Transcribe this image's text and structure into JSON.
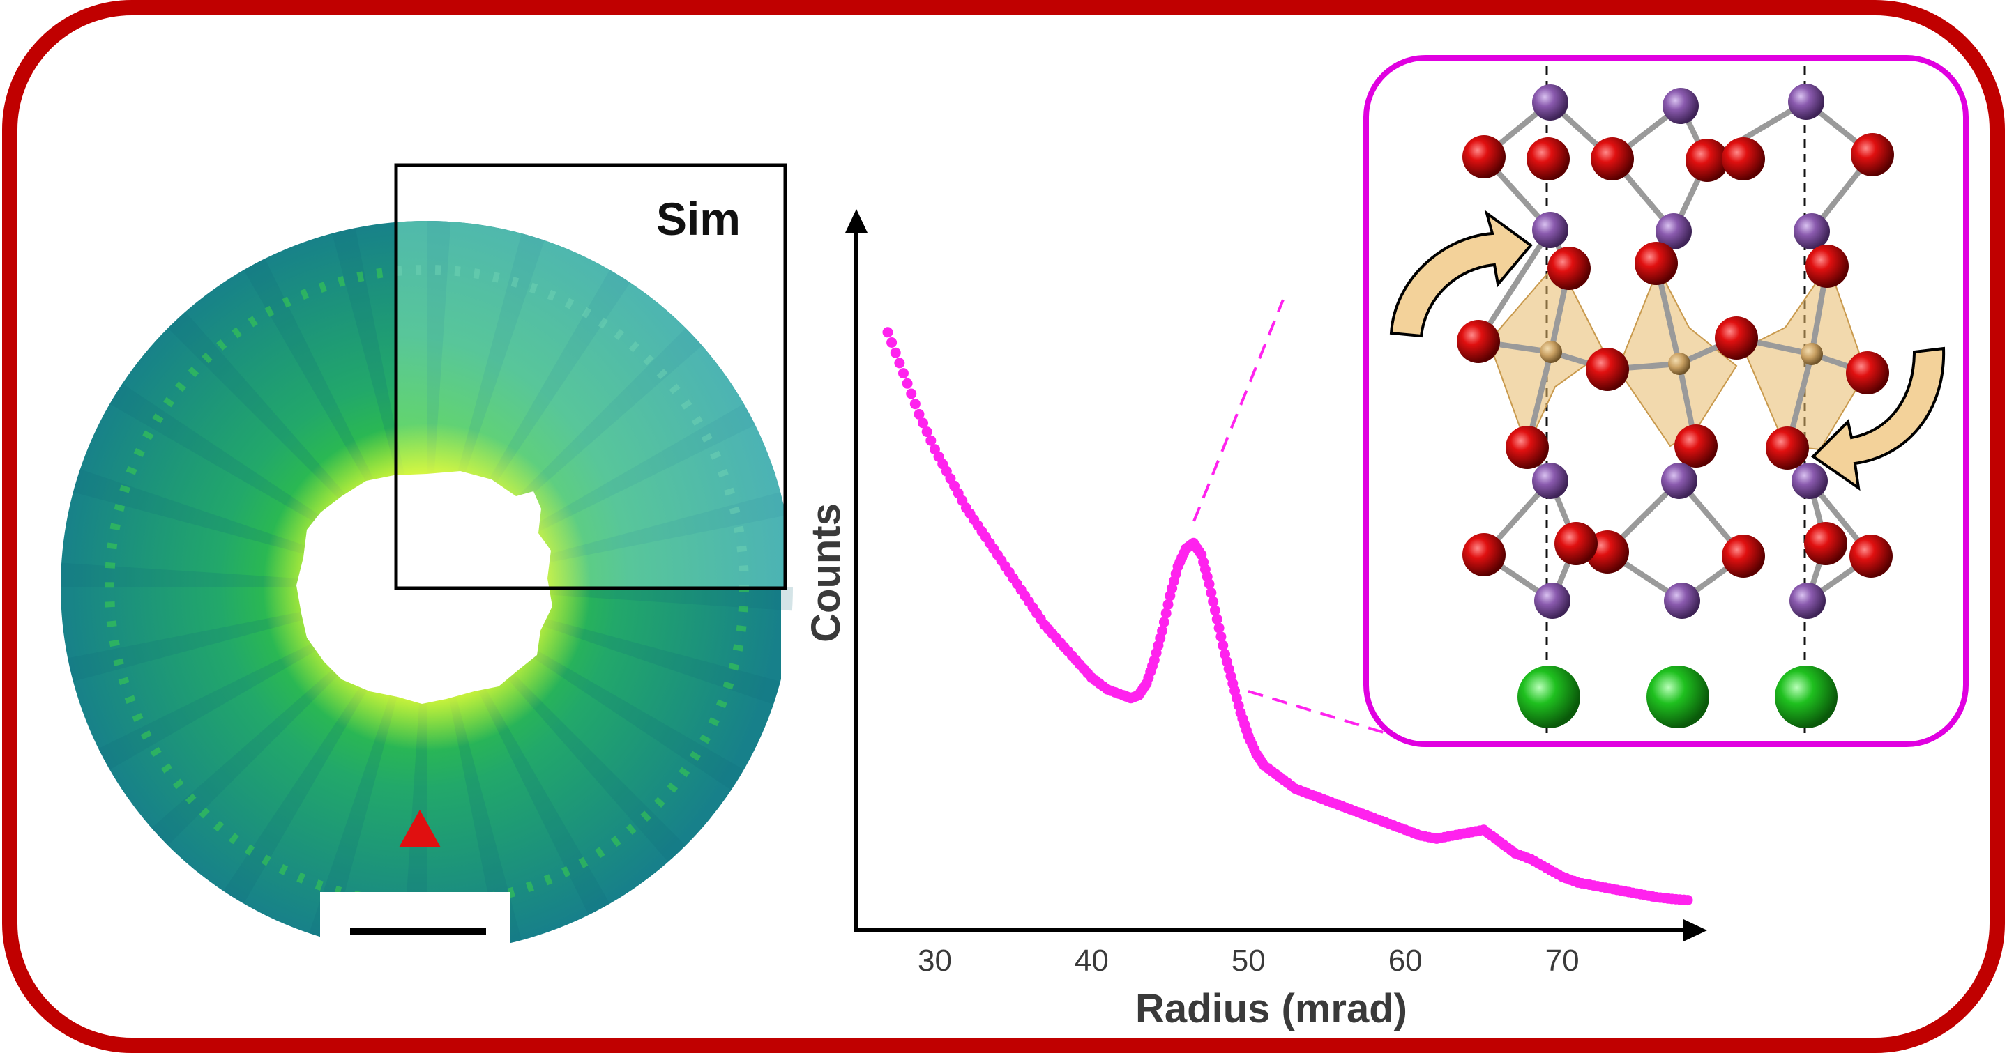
{
  "figure": {
    "border_color": "#C00000",
    "inset_label": "Sim",
    "marker_color": "#E01010",
    "pattern_colors": {
      "outer_teal": "#1E8A8C",
      "sim_teal": "#4FB5B0",
      "green": "#2EC83A",
      "bright": "#F6FF3A"
    }
  },
  "chart_data": {
    "type": "scatter",
    "xlabel": "Radius (mrad)",
    "ylabel": "Counts",
    "xticks": [
      30,
      40,
      50,
      60,
      70
    ],
    "xlim": [
      25,
      78
    ],
    "ylim": [
      0,
      1
    ],
    "color": "#FF22EE",
    "x": [
      27,
      28,
      29,
      30,
      31,
      32,
      33,
      34,
      35,
      36,
      37,
      38,
      39,
      40,
      41,
      42,
      42.5,
      43,
      43.5,
      44,
      44.5,
      45,
      45.5,
      46,
      46.5,
      47,
      47.5,
      48,
      48.5,
      49,
      49.5,
      50,
      50.5,
      51,
      52,
      53,
      54,
      55,
      56,
      57,
      58,
      59,
      60,
      61,
      62,
      63,
      64,
      65,
      66,
      67,
      68,
      69,
      70,
      71,
      72,
      73,
      74,
      75,
      76,
      77,
      78
    ],
    "y": [
      0.98,
      0.91,
      0.84,
      0.78,
      0.73,
      0.68,
      0.64,
      0.6,
      0.56,
      0.52,
      0.48,
      0.45,
      0.42,
      0.39,
      0.37,
      0.36,
      0.355,
      0.36,
      0.38,
      0.42,
      0.47,
      0.53,
      0.58,
      0.61,
      0.62,
      0.6,
      0.55,
      0.49,
      0.43,
      0.38,
      0.33,
      0.29,
      0.26,
      0.24,
      0.22,
      0.2,
      0.19,
      0.18,
      0.17,
      0.16,
      0.15,
      0.14,
      0.13,
      0.12,
      0.115,
      0.12,
      0.125,
      0.13,
      0.11,
      0.09,
      0.08,
      0.065,
      0.05,
      0.04,
      0.035,
      0.03,
      0.025,
      0.02,
      0.015,
      0.012,
      0.01
    ]
  },
  "structure": {
    "border_color": "#E000E0",
    "atom_colors": {
      "purple": "#8A5AAE",
      "red": "#D40000",
      "green": "#1FC01F",
      "tan": "#C9A062"
    },
    "polyhedron_color": "#E8B96A",
    "arrow_color": "#F3D29A"
  }
}
